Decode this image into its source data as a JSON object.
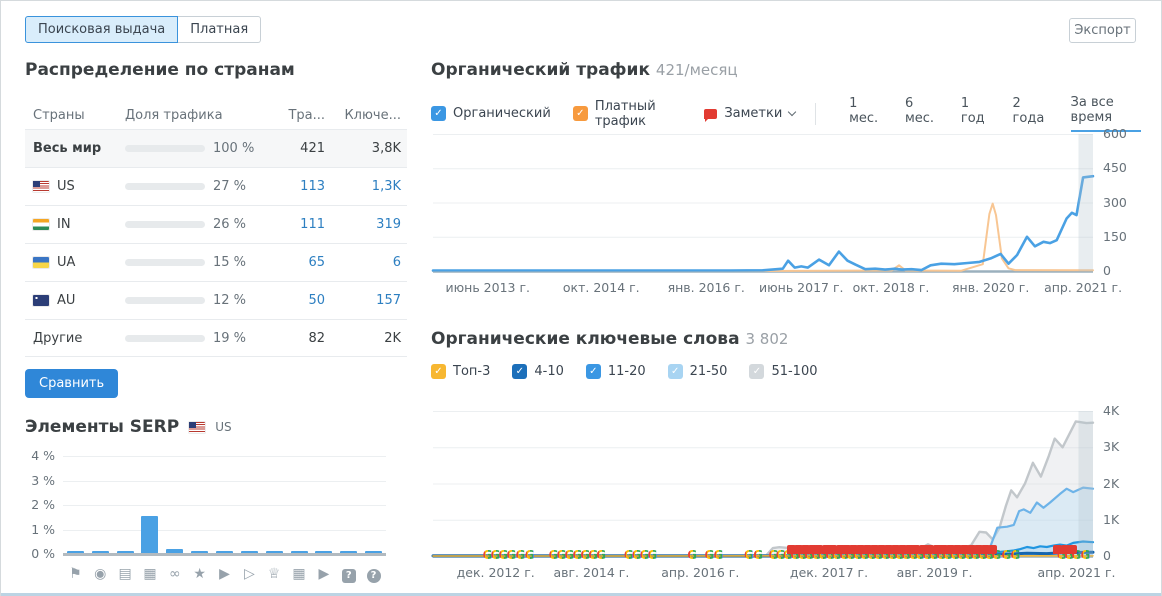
{
  "tabs": {
    "search": "Поисковая выдача",
    "paid": "Платная"
  },
  "export_label": "Экспорт",
  "colors": {
    "accent": "#2f87d8",
    "link": "#2d7fc1",
    "organic_line": "#4aa1e4",
    "paid_line": "#f8c693",
    "world_bar": "#1e68ad",
    "share_bar": "#5aa7e3",
    "notes_red": "#e23b32"
  },
  "countries": {
    "title": "Распределение по странам",
    "headers": [
      "Страны",
      "Доля трафика",
      "Тра...",
      "Ключе..."
    ],
    "rows": [
      {
        "flag": null,
        "name": "Весь мир",
        "share": "100 %",
        "share_pct": 100,
        "traffic": "421",
        "keywords": "3,8K",
        "bold": true,
        "link": false,
        "world": true
      },
      {
        "flag": "us",
        "name": "US",
        "share": "27 %",
        "share_pct": 27,
        "traffic": "113",
        "keywords": "1,3K",
        "bold": false,
        "link": true,
        "world": false
      },
      {
        "flag": "in",
        "name": "IN",
        "share": "26 %",
        "share_pct": 26,
        "traffic": "111",
        "keywords": "319",
        "bold": false,
        "link": true,
        "world": false
      },
      {
        "flag": "ua",
        "name": "UA",
        "share": "15 %",
        "share_pct": 15,
        "traffic": "65",
        "keywords": "6",
        "bold": false,
        "link": true,
        "world": false
      },
      {
        "flag": "au",
        "name": "AU",
        "share": "12 %",
        "share_pct": 12,
        "traffic": "50",
        "keywords": "157",
        "bold": false,
        "link": true,
        "world": false
      },
      {
        "flag": null,
        "name": "Другие",
        "share": "19 %",
        "share_pct": 19,
        "traffic": "82",
        "keywords": "2K",
        "bold": false,
        "link": false,
        "world": false
      }
    ],
    "compare_label": "Сравнить"
  },
  "serp": {
    "title": "Элементы SERP",
    "flag_label": "US"
  },
  "organic_traffic": {
    "title": "Органический трафик",
    "subtitle": "421/месяц",
    "legend": [
      {
        "label": "Органический",
        "color": "#3b97e3"
      },
      {
        "label": "Платный трафик",
        "color": "#f79a3e"
      }
    ],
    "notes_label": "Заметки",
    "ranges": [
      "1 мес.",
      "6 мес.",
      "1 год",
      "2 года",
      "За все время"
    ],
    "active_range": "За все время"
  },
  "organic_keywords": {
    "title": "Органические ключевые слова",
    "subtitle": "3 802",
    "legend": [
      {
        "label": "Топ-3",
        "color": "#f7b731"
      },
      {
        "label": "4-10",
        "color": "#1c6fba"
      },
      {
        "label": "11-20",
        "color": "#3b97e3"
      },
      {
        "label": "21-50",
        "color": "#a8d4f2"
      },
      {
        "label": "51-100",
        "color": "#d3d8dc"
      }
    ]
  },
  "chart_data": [
    {
      "type": "bar",
      "title": "Элементы SERP",
      "categories": [
        "featured-snippet",
        "local-pack",
        "top-stories",
        "images",
        "sitelinks",
        "reviews",
        "video",
        "featured-video",
        "knowledge-panel",
        "image-pack",
        "video-carousel",
        "faq",
        "people-also-ask"
      ],
      "icon_glyphs": [
        "⚑",
        "◉",
        "▤",
        "▦",
        "∞",
        "★",
        "▶",
        "▷",
        "♕",
        "▦",
        "▶",
        "?",
        "?"
      ],
      "values": [
        0.1,
        0.1,
        0.1,
        1.5,
        0.17,
        0.1,
        0.1,
        0.1,
        0.1,
        0.1,
        0.1,
        0.1,
        0.1
      ],
      "ylabel": "",
      "xlabel": "",
      "yticks": [
        "4 %",
        "3 %",
        "2 %",
        "1 %",
        "0 %"
      ],
      "ylim": [
        0,
        4.2
      ],
      "grid": true,
      "bar_color": "#4aa1e4"
    },
    {
      "type": "line",
      "title": "Органический трафик",
      "yticks": [
        "600",
        "450",
        "300",
        "150",
        "0"
      ],
      "ylim": [
        0,
        600
      ],
      "grid": true,
      "legend_position": "top",
      "x_ticks": [
        {
          "x": 0.083,
          "label": "июнь 2013 г."
        },
        {
          "x": 0.255,
          "label": "окт. 2014 г."
        },
        {
          "x": 0.414,
          "label": "янв. 2016 г."
        },
        {
          "x": 0.558,
          "label": "июнь 2017 г."
        },
        {
          "x": 0.694,
          "label": "окт. 2018 г."
        },
        {
          "x": 0.845,
          "label": "янв. 2020 г."
        },
        {
          "x": 0.985,
          "label": "апр. 2021 г."
        }
      ],
      "current_month_band": [
        0.978,
        1.0
      ],
      "series": [
        {
          "name": "Платный трафик",
          "color": "#f8c693",
          "width": 2,
          "points": [
            [
              0,
              0
            ],
            [
              0.5,
              0
            ],
            [
              0.695,
              2
            ],
            [
              0.706,
              25
            ],
            [
              0.716,
              2
            ],
            [
              0.8,
              1
            ],
            [
              0.833,
              30
            ],
            [
              0.843,
              250
            ],
            [
              0.848,
              295
            ],
            [
              0.853,
              245
            ],
            [
              0.862,
              55
            ],
            [
              0.872,
              12
            ],
            [
              0.882,
              4
            ],
            [
              1,
              3
            ]
          ]
        },
        {
          "name": "Органический",
          "color": "#4aa1e4",
          "width": 2.6,
          "points": [
            [
              0,
              2
            ],
            [
              0.45,
              2
            ],
            [
              0.5,
              3
            ],
            [
              0.53,
              10
            ],
            [
              0.538,
              45
            ],
            [
              0.548,
              15
            ],
            [
              0.558,
              20
            ],
            [
              0.568,
              15
            ],
            [
              0.585,
              50
            ],
            [
              0.6,
              25
            ],
            [
              0.615,
              85
            ],
            [
              0.628,
              45
            ],
            [
              0.64,
              28
            ],
            [
              0.655,
              8
            ],
            [
              0.67,
              10
            ],
            [
              0.685,
              6
            ],
            [
              0.7,
              10
            ],
            [
              0.71,
              6
            ],
            [
              0.725,
              8
            ],
            [
              0.74,
              4
            ],
            [
              0.754,
              25
            ],
            [
              0.77,
              32
            ],
            [
              0.79,
              30
            ],
            [
              0.81,
              35
            ],
            [
              0.828,
              40
            ],
            [
              0.845,
              55
            ],
            [
              0.86,
              75
            ],
            [
              0.872,
              32
            ],
            [
              0.885,
              70
            ],
            [
              0.9,
              150
            ],
            [
              0.912,
              108
            ],
            [
              0.925,
              128
            ],
            [
              0.935,
              122
            ],
            [
              0.945,
              135
            ],
            [
              0.96,
              230
            ],
            [
              0.968,
              255
            ],
            [
              0.975,
              245
            ],
            [
              0.985,
              410
            ],
            [
              1,
              415
            ]
          ]
        }
      ]
    },
    {
      "type": "area",
      "title": "Органические ключевые слова",
      "yticks": [
        "4K",
        "3K",
        "2K",
        "1K",
        "0"
      ],
      "ylim": [
        0,
        4200
      ],
      "grid": true,
      "x_ticks": [
        {
          "x": 0.095,
          "label": "дек. 2012 г."
        },
        {
          "x": 0.24,
          "label": "авг. 2014 г."
        },
        {
          "x": 0.405,
          "label": "апр. 2016 г."
        },
        {
          "x": 0.6,
          "label": "дек. 2017 г."
        },
        {
          "x": 0.76,
          "label": "авг. 2019 г."
        },
        {
          "x": 0.975,
          "label": "апр. 2021 г."
        }
      ],
      "current_month_band": [
        0.978,
        1.0
      ],
      "series": [
        {
          "name": "51-100",
          "color": "#c2c7cb",
          "fill": "rgba(205,210,214,0.30)",
          "width": 2.4,
          "points": [
            [
              0,
              15
            ],
            [
              0.49,
              15
            ],
            [
              0.505,
              20
            ],
            [
              0.515,
              230
            ],
            [
              0.525,
              255
            ],
            [
              0.54,
              230
            ],
            [
              0.555,
              250
            ],
            [
              0.57,
              235
            ],
            [
              0.59,
              248
            ],
            [
              0.61,
              240
            ],
            [
              0.63,
              250
            ],
            [
              0.65,
              235
            ],
            [
              0.67,
              246
            ],
            [
              0.69,
              235
            ],
            [
              0.71,
              240
            ],
            [
              0.725,
              230
            ],
            [
              0.74,
              232
            ],
            [
              0.75,
              340
            ],
            [
              0.76,
              250
            ],
            [
              0.77,
              215
            ],
            [
              0.785,
              222
            ],
            [
              0.8,
              232
            ],
            [
              0.815,
              300
            ],
            [
              0.828,
              700
            ],
            [
              0.838,
              680
            ],
            [
              0.848,
              480
            ],
            [
              0.858,
              800
            ],
            [
              0.868,
              1450
            ],
            [
              0.876,
              1900
            ],
            [
              0.885,
              1700
            ],
            [
              0.897,
              2100
            ],
            [
              0.909,
              2700
            ],
            [
              0.921,
              2300
            ],
            [
              0.933,
              2900
            ],
            [
              0.942,
              3400
            ],
            [
              0.954,
              3150
            ],
            [
              0.974,
              3900
            ],
            [
              0.99,
              3850
            ],
            [
              1,
              3860
            ]
          ]
        },
        {
          "name": "21-50",
          "color": "#6db3e8",
          "fill": "rgba(180,220,245,0.35)",
          "width": 2.2,
          "points": [
            [
              0,
              8
            ],
            [
              0.83,
              10
            ],
            [
              0.845,
              300
            ],
            [
              0.855,
              820
            ],
            [
              0.87,
              850
            ],
            [
              0.88,
              900
            ],
            [
              0.888,
              1300
            ],
            [
              0.895,
              1350
            ],
            [
              0.905,
              1250
            ],
            [
              0.915,
              1550
            ],
            [
              0.925,
              1400
            ],
            [
              0.935,
              1550
            ],
            [
              0.95,
              1800
            ],
            [
              0.96,
              1950
            ],
            [
              0.97,
              1850
            ],
            [
              0.985,
              1980
            ],
            [
              1,
              1950
            ]
          ]
        },
        {
          "name": "11-20",
          "color": "#2196e0",
          "fill": "rgba(120,190,240,0.25)",
          "width": 2.2,
          "points": [
            [
              0,
              5
            ],
            [
              0.84,
              5
            ],
            [
              0.85,
              60
            ],
            [
              0.86,
              120
            ],
            [
              0.87,
              140
            ],
            [
              0.88,
              160
            ],
            [
              0.89,
              200
            ],
            [
              0.9,
              260
            ],
            [
              0.91,
              230
            ],
            [
              0.92,
              280
            ],
            [
              0.93,
              260
            ],
            [
              0.94,
              300
            ],
            [
              0.95,
              330
            ],
            [
              0.96,
              300
            ],
            [
              0.97,
              380
            ],
            [
              0.985,
              420
            ],
            [
              1,
              400
            ]
          ]
        },
        {
          "name": "4-10",
          "color": "#1565ad",
          "fill": "none",
          "width": 3,
          "points": [
            [
              0,
              2
            ],
            [
              0.84,
              2
            ],
            [
              0.86,
              40
            ],
            [
              0.88,
              60
            ],
            [
              0.9,
              80
            ],
            [
              0.93,
              70
            ],
            [
              0.95,
              90
            ],
            [
              0.97,
              100
            ],
            [
              1,
              110
            ]
          ]
        },
        {
          "name": "Топ-3",
          "color": "#f7b731",
          "fill": "none",
          "width": 1.5,
          "points": [
            [
              0,
              0
            ],
            [
              1,
              5
            ]
          ]
        }
      ],
      "google_markers": [
        {
          "x": 0.082,
          "red": false
        },
        {
          "x": 0.094,
          "red": false
        },
        {
          "x": 0.106,
          "red": false
        },
        {
          "x": 0.118,
          "red": false
        },
        {
          "x": 0.132,
          "red": false
        },
        {
          "x": 0.146,
          "red": false
        },
        {
          "x": 0.182,
          "red": false
        },
        {
          "x": 0.194,
          "red": false
        },
        {
          "x": 0.206,
          "red": false
        },
        {
          "x": 0.218,
          "red": false
        },
        {
          "x": 0.23,
          "red": false
        },
        {
          "x": 0.242,
          "red": false
        },
        {
          "x": 0.254,
          "red": false
        },
        {
          "x": 0.296,
          "red": false
        },
        {
          "x": 0.308,
          "red": false
        },
        {
          "x": 0.32,
          "red": false
        },
        {
          "x": 0.332,
          "red": false
        },
        {
          "x": 0.392,
          "red": false
        },
        {
          "x": 0.418,
          "red": false
        },
        {
          "x": 0.432,
          "red": false
        },
        {
          "x": 0.478,
          "red": false
        },
        {
          "x": 0.492,
          "red": false
        },
        {
          "x": 0.515,
          "red": false
        },
        {
          "x": 0.526,
          "red": false
        },
        {
          "x": 0.537,
          "red": false
        },
        {
          "x": 0.548,
          "red": true
        },
        {
          "x": 0.559,
          "red": true
        },
        {
          "x": 0.569,
          "red": true
        },
        {
          "x": 0.58,
          "red": true
        },
        {
          "x": 0.59,
          "red": true
        },
        {
          "x": 0.601,
          "red": true
        },
        {
          "x": 0.611,
          "red": true
        },
        {
          "x": 0.622,
          "red": true
        },
        {
          "x": 0.632,
          "red": true
        },
        {
          "x": 0.643,
          "red": true
        },
        {
          "x": 0.653,
          "red": true
        },
        {
          "x": 0.664,
          "red": true
        },
        {
          "x": 0.674,
          "red": true
        },
        {
          "x": 0.685,
          "red": true
        },
        {
          "x": 0.695,
          "red": true
        },
        {
          "x": 0.706,
          "red": true
        },
        {
          "x": 0.716,
          "red": true
        },
        {
          "x": 0.727,
          "red": true
        },
        {
          "x": 0.737,
          "red": true
        },
        {
          "x": 0.748,
          "red": true
        },
        {
          "x": 0.758,
          "red": true
        },
        {
          "x": 0.769,
          "red": true
        },
        {
          "x": 0.779,
          "red": true
        },
        {
          "x": 0.79,
          "red": true
        },
        {
          "x": 0.8,
          "red": true
        },
        {
          "x": 0.811,
          "red": true
        },
        {
          "x": 0.821,
          "red": true
        },
        {
          "x": 0.832,
          "red": true
        },
        {
          "x": 0.842,
          "red": true
        },
        {
          "x": 0.853,
          "red": true
        },
        {
          "x": 0.868,
          "red": false
        },
        {
          "x": 0.882,
          "red": false
        },
        {
          "x": 0.952,
          "red": true
        },
        {
          "x": 0.963,
          "red": true
        },
        {
          "x": 0.974,
          "red": true
        },
        {
          "x": 0.988,
          "red": false
        }
      ]
    }
  ]
}
